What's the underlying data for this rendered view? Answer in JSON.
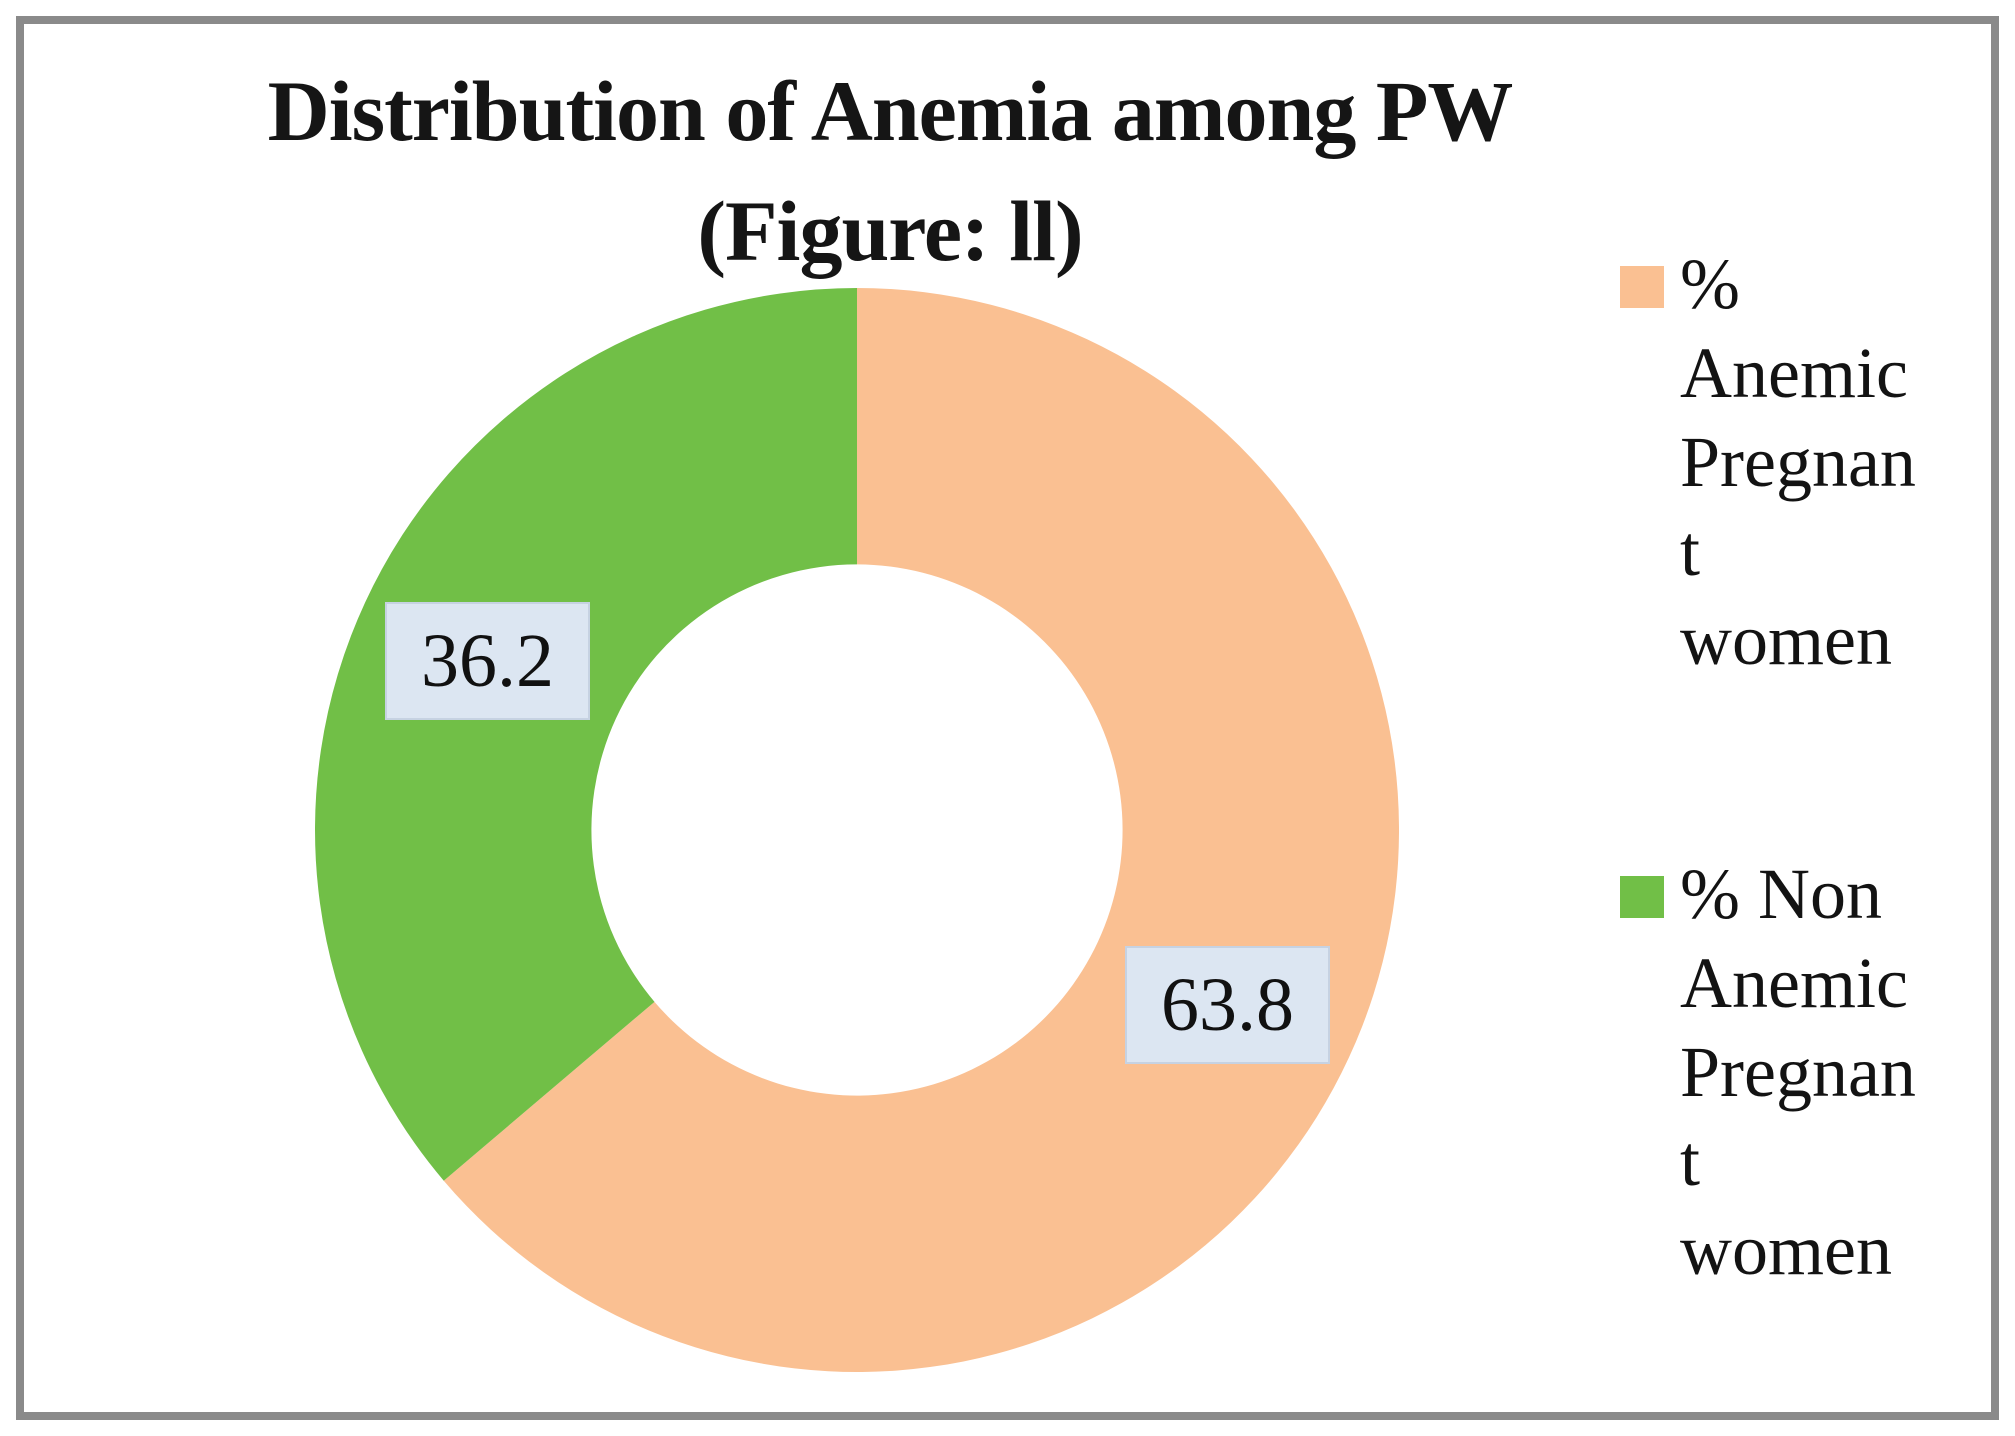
{
  "title": {
    "line1": "Distribution of Anemia among PW",
    "line2": "(Figure: ll)"
  },
  "chart_data": {
    "type": "pie",
    "subtype": "donut",
    "title": "Distribution of Anemia among PW (Figure: ll)",
    "start_angle_deg": 0,
    "direction": "clockwise",
    "hole_ratio": 0.49,
    "legend_position": "right",
    "grid": false,
    "slices": [
      {
        "label": "% Anemic Pregnant women",
        "value": 63.8,
        "data_label": "63.8",
        "color": "#fac092"
      },
      {
        "label": "% Non Anemic Pregnant women",
        "value": 36.2,
        "data_label": "36.2",
        "color": "#71bf47"
      }
    ],
    "data_label_bg": "#dce6f2"
  },
  "data_labels": {
    "anemic": "63.8",
    "non_anemic": "36.2"
  },
  "legend": {
    "items": [
      {
        "name": "% Anemic Pregnant women",
        "swatch_color": "#fac092",
        "wrapped_text": "%\nAnemic\nPregnan\nt\nwomen"
      },
      {
        "name": "% Non Anemic Pregnant women",
        "swatch_color": "#71bf47",
        "wrapped_text": "% Non\nAnemic\nPregnan\nt\nwomen"
      }
    ]
  },
  "colors": {
    "frame_border": "#8a8a8a",
    "text": "#151515",
    "label_box_bg": "#dce6f2"
  }
}
